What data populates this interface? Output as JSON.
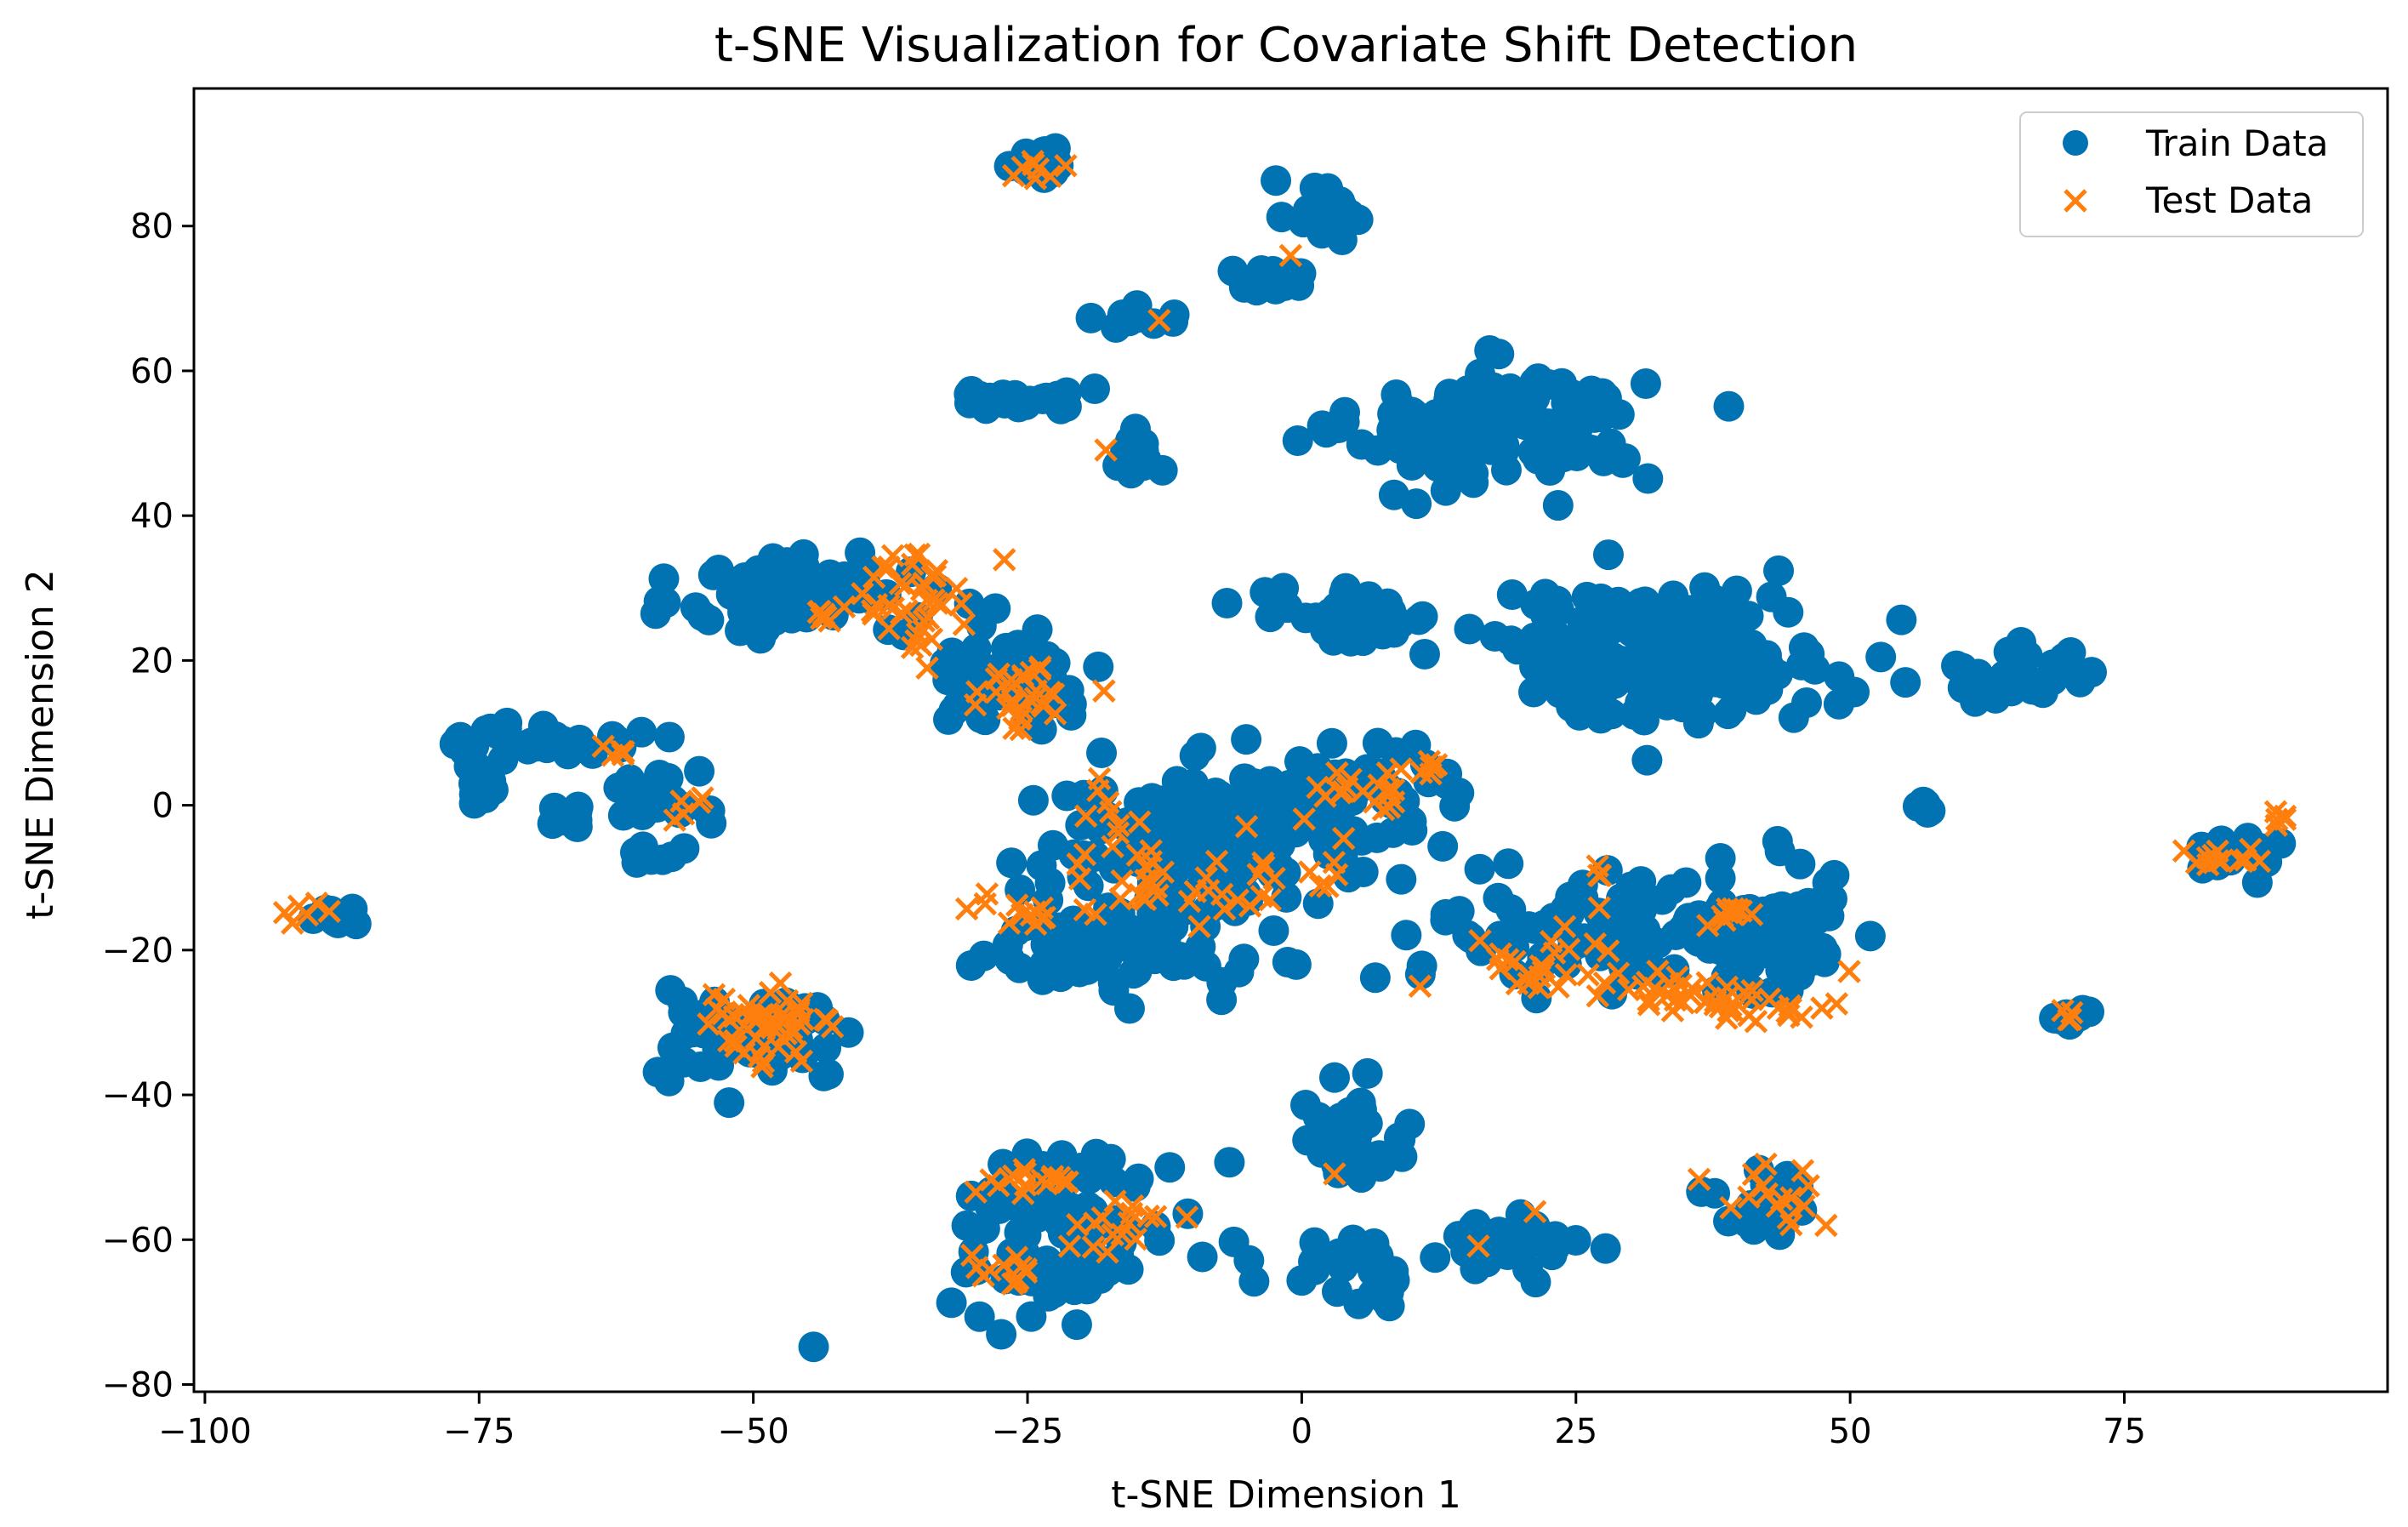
{
  "chart_data": {
    "type": "scatter",
    "title": "t-SNE Visualization for Covariate Shift Detection",
    "xlabel": "t-SNE Dimension 1",
    "ylabel": "t-SNE Dimension 2",
    "xlim": [
      -101,
      99
    ],
    "ylim": [
      -81,
      99
    ],
    "xticks": [
      -100,
      -75,
      -50,
      -25,
      0,
      25,
      50,
      75
    ],
    "yticks": [
      -80,
      -60,
      -40,
      -20,
      0,
      20,
      40,
      60,
      80
    ],
    "xtick_labels": [
      "−100",
      "−75",
      "−50",
      "−25",
      "0",
      "25",
      "50",
      "75"
    ],
    "ytick_labels": [
      "−80",
      "−60",
      "−40",
      "−20",
      "0",
      "20",
      "40",
      "60",
      "80"
    ],
    "legend_position": "top-right",
    "series": [
      {
        "name": "Train Data",
        "marker": "circle",
        "color": "#0173b2",
        "clusters": [
          {
            "cx": -24,
            "cy": 89,
            "sx": 1.5,
            "sy": 1.2,
            "n": 18
          },
          {
            "cx": 2,
            "cy": 82,
            "sx": 1.8,
            "sy": 2.2,
            "n": 24
          },
          {
            "cx": -3,
            "cy": 73,
            "sx": 1.5,
            "sy": 1.2,
            "n": 14
          },
          {
            "cx": -15,
            "cy": 67,
            "sx": 1.8,
            "sy": 0.8,
            "n": 12
          },
          {
            "cx": -26,
            "cy": 56,
            "sx": 3.5,
            "sy": 0.9,
            "n": 28
          },
          {
            "cx": -16,
            "cy": 49,
            "sx": 1.8,
            "sy": 1.5,
            "n": 16
          },
          {
            "cx": 18,
            "cy": 52,
            "sx": 6.5,
            "sy": 4.0,
            "n": 150
          },
          {
            "cx": -46,
            "cy": 29,
            "sx": 5.0,
            "sy": 3.0,
            "n": 90
          },
          {
            "cx": -26,
            "cy": 18,
            "sx": 4.0,
            "sy": 3.5,
            "n": 70
          },
          {
            "cx": 4,
            "cy": 26,
            "sx": 4.0,
            "sy": 1.8,
            "n": 50
          },
          {
            "cx": 33,
            "cy": 21,
            "sx": 7.5,
            "sy": 4.5,
            "n": 200
          },
          {
            "cx": 66,
            "cy": 18,
            "sx": 3.5,
            "sy": 2.0,
            "n": 32
          },
          {
            "cx": -69,
            "cy": 9,
            "sx": 4.0,
            "sy": 1.5,
            "n": 35
          },
          {
            "cx": -75,
            "cy": 3,
            "sx": 0.8,
            "sy": 1.5,
            "n": 8
          },
          {
            "cx": -67,
            "cy": -2,
            "sx": 1.2,
            "sy": 1.0,
            "n": 10
          },
          {
            "cx": -58,
            "cy": 1,
            "sx": 3.5,
            "sy": 1.8,
            "n": 22
          },
          {
            "cx": -59,
            "cy": -7,
            "sx": 1.2,
            "sy": 1.0,
            "n": 8
          },
          {
            "cx": 57,
            "cy": 0,
            "sx": 0.6,
            "sy": 0.6,
            "n": 6
          },
          {
            "cx": -88,
            "cy": -15,
            "sx": 1.5,
            "sy": 0.8,
            "n": 12
          },
          {
            "cx": -8,
            "cy": -5,
            "sx": 8.0,
            "sy": 5.0,
            "n": 160
          },
          {
            "cx": -18,
            "cy": -20,
            "sx": 6.0,
            "sy": 3.0,
            "n": 90
          },
          {
            "cx": 6,
            "cy": 3,
            "sx": 4.0,
            "sy": 2.5,
            "n": 50
          },
          {
            "cx": 29,
            "cy": -17,
            "sx": 9.0,
            "sy": 4.0,
            "n": 110
          },
          {
            "cx": 44,
            "cy": -18,
            "sx": 3.0,
            "sy": 5.0,
            "n": 55
          },
          {
            "cx": -50,
            "cy": -32,
            "sx": 4.5,
            "sy": 3.0,
            "n": 60
          },
          {
            "cx": 4,
            "cy": -47,
            "sx": 3.0,
            "sy": 3.0,
            "n": 40
          },
          {
            "cx": 70,
            "cy": -29,
            "sx": 1.0,
            "sy": 0.8,
            "n": 10
          },
          {
            "cx": 86,
            "cy": -7,
            "sx": 2.0,
            "sy": 1.2,
            "n": 20
          },
          {
            "cx": -21,
            "cy": -58,
            "sx": 6.0,
            "sy": 6.0,
            "n": 90
          },
          {
            "cx": 6,
            "cy": -64,
            "sx": 2.5,
            "sy": 2.0,
            "n": 25
          },
          {
            "cx": 17,
            "cy": -62,
            "sx": 3.5,
            "sy": 2.0,
            "n": 30
          },
          {
            "cx": 43,
            "cy": -55,
            "sx": 2.5,
            "sy": 2.5,
            "n": 30
          }
        ]
      },
      {
        "name": "Test Data",
        "marker": "x",
        "color": "#ff7f0e",
        "clusters": [
          {
            "cx": -24,
            "cy": 88,
            "sx": 1.0,
            "sy": 0.8,
            "n": 8
          },
          {
            "cx": -1,
            "cy": 76,
            "sx": 0.1,
            "sy": 0.1,
            "n": 1
          },
          {
            "cx": -13,
            "cy": 67,
            "sx": 0.1,
            "sy": 0.1,
            "n": 1
          },
          {
            "cx": -18,
            "cy": 49,
            "sx": 0.1,
            "sy": 0.1,
            "n": 1
          },
          {
            "cx": -35,
            "cy": 29,
            "sx": 2.5,
            "sy": 3.5,
            "n": 40
          },
          {
            "cx": -44,
            "cy": 26,
            "sx": 0.8,
            "sy": 0.8,
            "n": 6
          },
          {
            "cx": -26,
            "cy": 15,
            "sx": 3.0,
            "sy": 2.5,
            "n": 30
          },
          {
            "cx": -62,
            "cy": 7,
            "sx": 0.8,
            "sy": 0.8,
            "n": 5
          },
          {
            "cx": -56,
            "cy": 0,
            "sx": 1.5,
            "sy": 1.5,
            "n": 5
          },
          {
            "cx": -91,
            "cy": -15,
            "sx": 1.0,
            "sy": 0.8,
            "n": 6
          },
          {
            "cx": -10,
            "cy": -10,
            "sx": 8.0,
            "sy": 3.0,
            "n": 40
          },
          {
            "cx": -18,
            "cy": -2,
            "sx": 1.0,
            "sy": 3.0,
            "n": 8
          },
          {
            "cx": 5,
            "cy": 2,
            "sx": 3.5,
            "sy": 3.0,
            "n": 20
          },
          {
            "cx": 12,
            "cy": 5,
            "sx": 0.8,
            "sy": 1.2,
            "n": 6
          },
          {
            "cx": -25,
            "cy": -15,
            "sx": 3.0,
            "sy": 1.5,
            "n": 14
          },
          {
            "cx": 22,
            "cy": -22,
            "sx": 3.5,
            "sy": 3.0,
            "n": 28
          },
          {
            "cx": 34,
            "cy": -26,
            "sx": 3.0,
            "sy": 1.5,
            "n": 25
          },
          {
            "cx": 39,
            "cy": -15,
            "sx": 1.0,
            "sy": 1.0,
            "n": 10
          },
          {
            "cx": 43,
            "cy": -28,
            "sx": 3.0,
            "sy": 1.5,
            "n": 20
          },
          {
            "cx": 50,
            "cy": -23,
            "sx": 0.1,
            "sy": 0.1,
            "n": 1
          },
          {
            "cx": 27,
            "cy": -12,
            "sx": 0.5,
            "sy": 2.0,
            "n": 4
          },
          {
            "cx": -49,
            "cy": -31,
            "sx": 3.5,
            "sy": 3.0,
            "n": 50
          },
          {
            "cx": 70,
            "cy": -29,
            "sx": 0.8,
            "sy": 0.6,
            "n": 4
          },
          {
            "cx": 85,
            "cy": -7,
            "sx": 2.0,
            "sy": 1.0,
            "n": 12
          },
          {
            "cx": 89,
            "cy": -2,
            "sx": 0.6,
            "sy": 0.8,
            "n": 5
          },
          {
            "cx": 3,
            "cy": -51,
            "sx": 0.1,
            "sy": 0.1,
            "n": 1
          },
          {
            "cx": -25,
            "cy": -52,
            "sx": 2.5,
            "sy": 0.8,
            "n": 16
          },
          {
            "cx": -17,
            "cy": -58,
            "sx": 2.5,
            "sy": 2.5,
            "n": 16
          },
          {
            "cx": -28,
            "cy": -64,
            "sx": 2.0,
            "sy": 1.5,
            "n": 12
          },
          {
            "cx": 16,
            "cy": -61,
            "sx": 0.1,
            "sy": 0.1,
            "n": 1
          },
          {
            "cx": 21,
            "cy": -56,
            "sx": 0.1,
            "sy": 0.1,
            "n": 1
          },
          {
            "cx": 43,
            "cy": -55,
            "sx": 2.5,
            "sy": 2.5,
            "n": 16
          }
        ]
      }
    ]
  }
}
